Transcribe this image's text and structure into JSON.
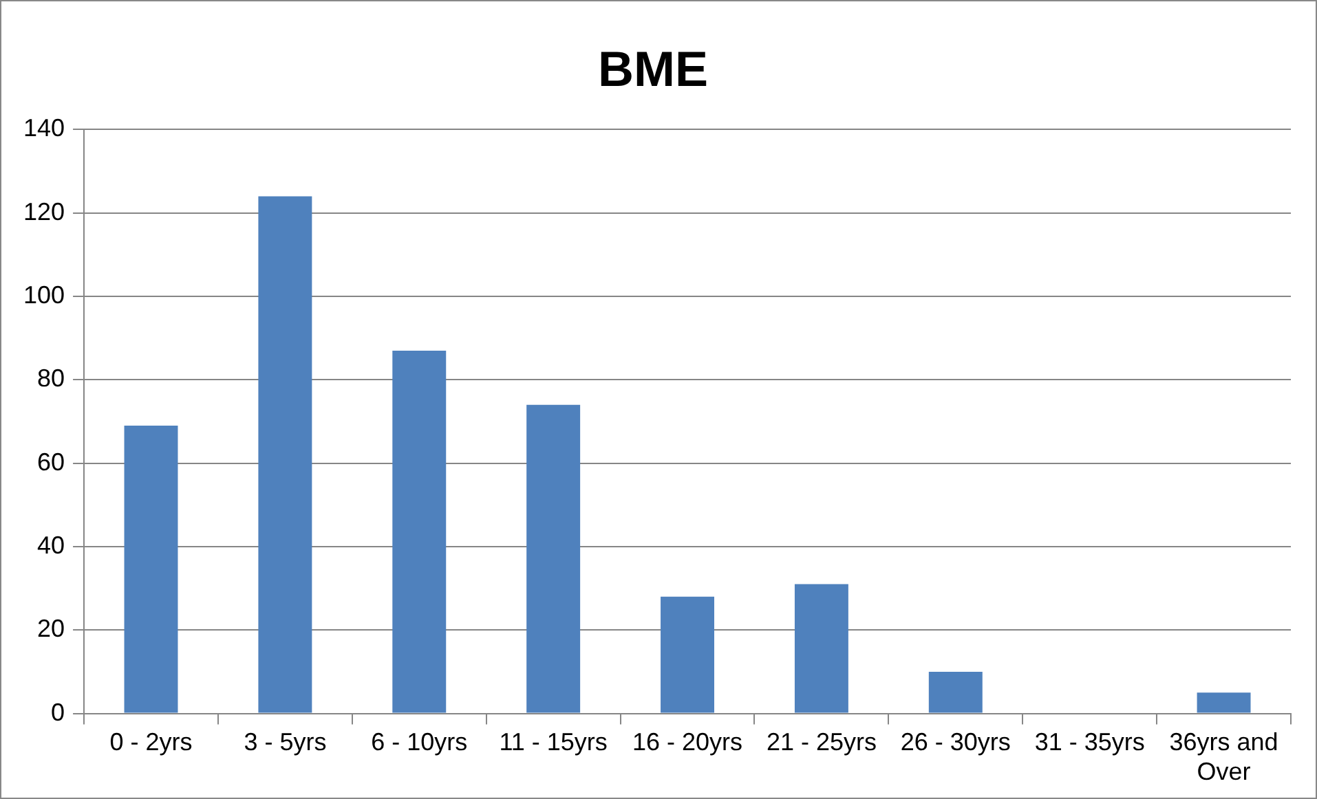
{
  "chart_data": {
    "type": "bar",
    "title": "BME",
    "categories": [
      "0 - 2yrs",
      "3 - 5yrs",
      "6 - 10yrs",
      "11 - 15yrs",
      "16 - 20yrs",
      "21 - 25yrs",
      "26 - 30yrs",
      "31 - 35yrs",
      "36yrs and Over"
    ],
    "values": [
      69,
      124,
      87,
      74,
      28,
      31,
      10,
      0,
      5
    ],
    "color": "#4f81bd",
    "ylim": [
      0,
      140
    ],
    "yticks": [
      0,
      20,
      40,
      60,
      80,
      100,
      120,
      140
    ],
    "grid": "y",
    "legend": false
  }
}
